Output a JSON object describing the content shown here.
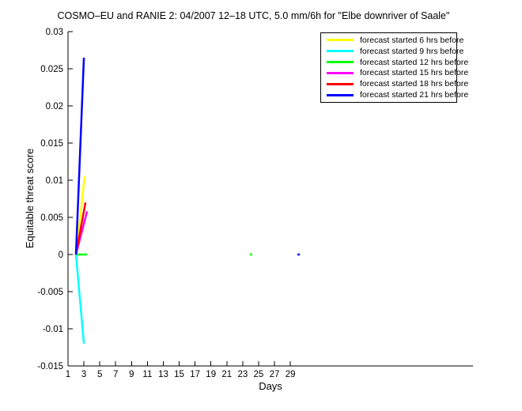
{
  "chart_data": {
    "type": "line",
    "title": "COSMO–EU and RANIE 2: 04/2007 12–18 UTC, 5.0 mm/6h for \"Elbe downriver of Saale\"",
    "xlabel": "Days",
    "ylabel": "Equitable threat score",
    "xlim": [
      1,
      52
    ],
    "ylim": [
      -0.015,
      0.03
    ],
    "grid": false,
    "legend_position": "upper-right-inside",
    "xticks": [
      {
        "v": 1,
        "label": "1"
      },
      {
        "v": 3,
        "label": "3"
      },
      {
        "v": 5,
        "label": "5"
      },
      {
        "v": 7,
        "label": "7"
      },
      {
        "v": 9,
        "label": "9"
      },
      {
        "v": 11,
        "label": "11"
      },
      {
        "v": 13,
        "label": "13"
      },
      {
        "v": 15,
        "label": "15"
      },
      {
        "v": 17,
        "label": "17"
      },
      {
        "v": 19,
        "label": "19"
      },
      {
        "v": 21,
        "label": "21"
      },
      {
        "v": 23,
        "label": "23"
      },
      {
        "v": 25,
        "label": "25"
      },
      {
        "v": 27,
        "label": "27"
      },
      {
        "v": 29,
        "label": "29"
      }
    ],
    "yticks": [
      {
        "v": 0.03,
        "label": "0.03"
      },
      {
        "v": 0.025,
        "label": "0.025"
      },
      {
        "v": 0.02,
        "label": "0.02"
      },
      {
        "v": 0.015,
        "label": "0.015"
      },
      {
        "v": 0.01,
        "label": "0.01"
      },
      {
        "v": 0.005,
        "label": "0.005"
      },
      {
        "v": 0,
        "label": "0"
      },
      {
        "v": -0.005,
        "label": "-0.005"
      },
      {
        "v": -0.01,
        "label": "-0.01"
      },
      {
        "v": -0.015,
        "label": "-0.015"
      }
    ],
    "series": [
      {
        "name": "forecast started 6 hrs before",
        "color": "#ffff00",
        "segments": [
          [
            [
              2,
              0
            ],
            [
              3.1,
              0.0105
            ]
          ]
        ]
      },
      {
        "name": "forecast started 9 hrs before",
        "color": "#00ffff",
        "segments": [
          [
            [
              2,
              0
            ],
            [
              3,
              -0.012
            ]
          ]
        ]
      },
      {
        "name": "forecast started 12 hrs before",
        "color": "#00ff00",
        "segments": [
          [
            [
              2.1,
              0
            ],
            [
              3.4,
              0
            ]
          ],
          [
            [
              23.9,
              0
            ],
            [
              24.2,
              0
            ]
          ]
        ]
      },
      {
        "name": "forecast started 15 hrs before",
        "color": "#ff00ff",
        "segments": [
          [
            [
              2,
              0
            ],
            [
              3.4,
              0.0058
            ]
          ]
        ]
      },
      {
        "name": "forecast started 18 hrs before",
        "color": "#ff0000",
        "segments": [
          [
            [
              2,
              0
            ],
            [
              3.2,
              0.007
            ]
          ]
        ]
      },
      {
        "name": "forecast started 21 hrs before",
        "color": "#0000ff",
        "segments": [
          [
            [
              2,
              0
            ],
            [
              3,
              0.0265
            ]
          ],
          [
            [
              29.9,
              0
            ],
            [
              30.2,
              0
            ]
          ]
        ]
      }
    ]
  }
}
